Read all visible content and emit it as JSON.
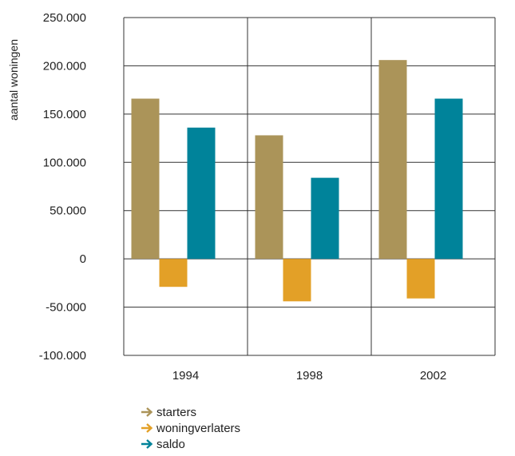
{
  "chart_data": {
    "type": "bar",
    "title": "",
    "xlabel": "",
    "ylabel": "aantal woningen",
    "ylim": [
      -100000,
      250000
    ],
    "yticks": [
      250000,
      200000,
      150000,
      100000,
      50000,
      0,
      -50000,
      -100000
    ],
    "ytick_labels": [
      "250.000",
      "200.000",
      "150.000",
      "100.000",
      "50.000",
      "0",
      "-50.000",
      "-100.000"
    ],
    "categories": [
      "1994",
      "1998",
      "2002"
    ],
    "series": [
      {
        "name": "starters",
        "color": "#ab9459",
        "values": [
          166000,
          128000,
          206000
        ]
      },
      {
        "name": "woningverlaters",
        "color": "#e3a027",
        "values": [
          -29000,
          -44000,
          -41000
        ]
      },
      {
        "name": "saldo",
        "color": "#00839a",
        "values": [
          136000,
          84000,
          166000
        ]
      }
    ],
    "grid": true,
    "legend_position": "bottom-left"
  }
}
